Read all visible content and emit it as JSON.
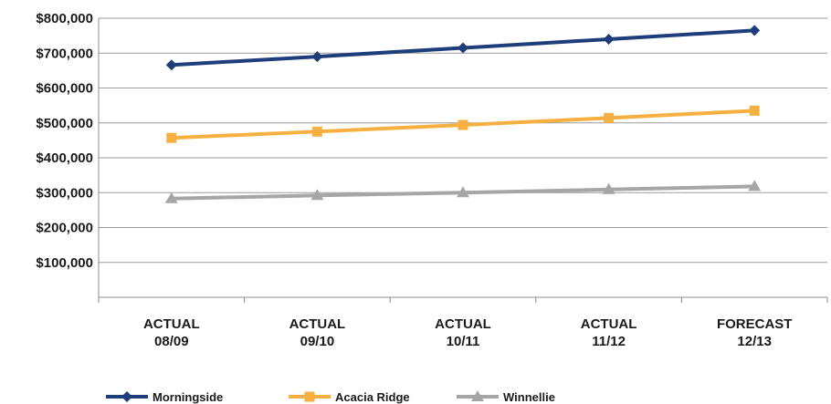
{
  "chart_data": {
    "type": "line",
    "title": "",
    "xlabel": "",
    "ylabel": "",
    "categories": [
      [
        "ACTUAL",
        "08/09"
      ],
      [
        "ACTUAL",
        "09/10"
      ],
      [
        "ACTUAL",
        "10/11"
      ],
      [
        "ACTUAL",
        "11/12"
      ],
      [
        "FORECAST",
        "12/13"
      ]
    ],
    "ylim": [
      0,
      800000
    ],
    "yticks": [
      {
        "value": 100000,
        "label": "$100,000"
      },
      {
        "value": 200000,
        "label": "$200,000"
      },
      {
        "value": 300000,
        "label": "$300,000"
      },
      {
        "value": 400000,
        "label": "$400,000"
      },
      {
        "value": 500000,
        "label": "$500,000"
      },
      {
        "value": 600000,
        "label": "$600,000"
      },
      {
        "value": 700000,
        "label": "$700,000"
      },
      {
        "value": 800000,
        "label": "$800,000"
      }
    ],
    "grid": true,
    "legend_position": "bottom",
    "series": [
      {
        "name": "Morningside",
        "color": "#1f3d7a",
        "marker": "diamond",
        "values": [
          666000,
          690000,
          715000,
          740000,
          765000
        ]
      },
      {
        "name": "Acacia Ridge",
        "color": "#f6b042",
        "marker": "square",
        "values": [
          457000,
          475000,
          494000,
          514000,
          535000
        ]
      },
      {
        "name": "Winnellie",
        "color": "#a6a6a8",
        "marker": "triangle",
        "values": [
          283000,
          292000,
          300000,
          309000,
          318000
        ]
      }
    ]
  }
}
